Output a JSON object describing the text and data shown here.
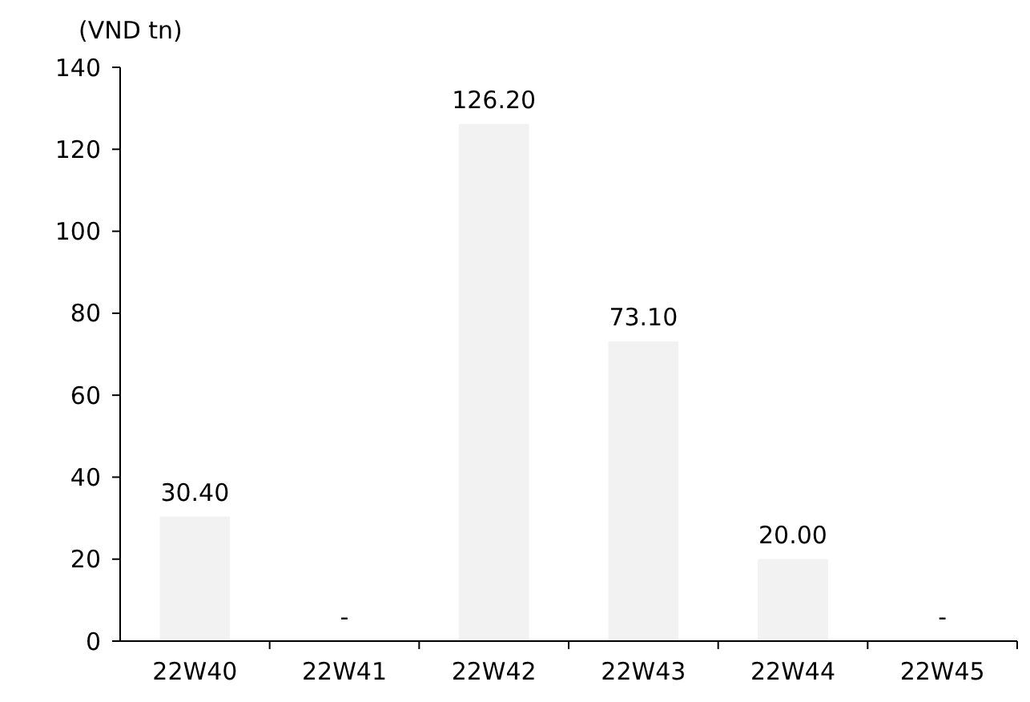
{
  "chart_data": {
    "type": "bar",
    "ylabel": "(VND tn)",
    "categories": [
      "22W40",
      "22W41",
      "22W42",
      "22W43",
      "22W44",
      "22W45"
    ],
    "values": [
      30.4,
      null,
      126.2,
      73.1,
      20.0,
      null
    ],
    "value_labels": [
      "30.40",
      "-",
      "126.20",
      "73.10",
      "20.00",
      "-"
    ],
    "color": "#f2f2f2",
    "ylim": [
      0,
      140
    ],
    "yticks": [
      0,
      20,
      40,
      60,
      80,
      100,
      120,
      140
    ],
    "grid": false
  }
}
